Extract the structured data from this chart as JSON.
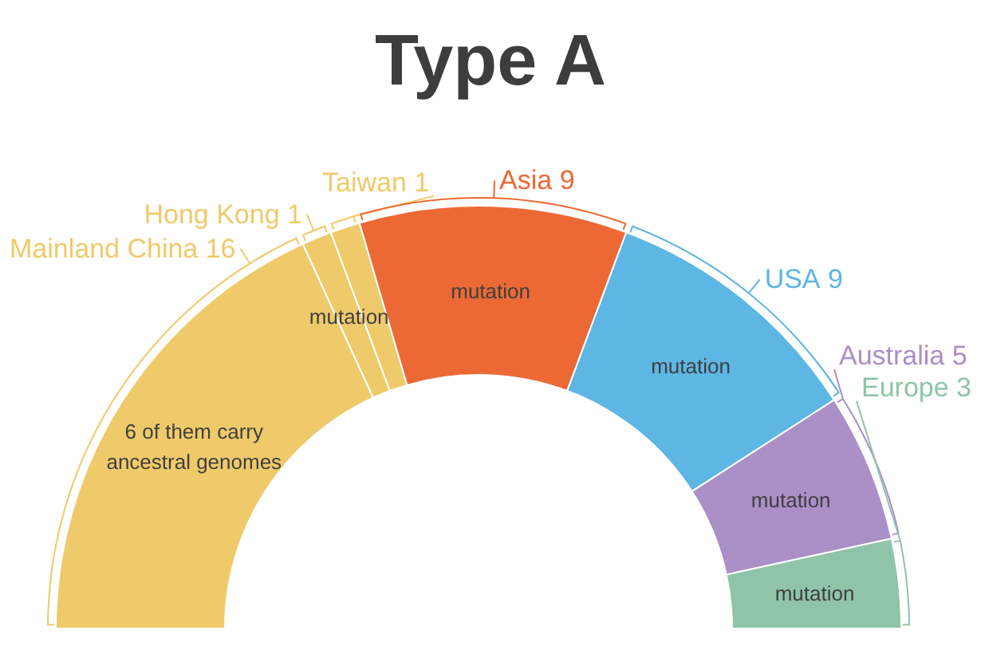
{
  "chart_data": {
    "type": "donut",
    "title": "Type A",
    "categories": [
      "Mainland China",
      "Hong Kong",
      "Taiwan",
      "Asia",
      "USA",
      "Australia",
      "Europe"
    ],
    "values": [
      16,
      1,
      1,
      9,
      9,
      5,
      3
    ],
    "colors": [
      "#efca6a",
      "#efca6a",
      "#efca6a",
      "#ec6936",
      "#5db6e4",
      "#ab8fc7",
      "#8fc4a8"
    ],
    "data_labels": true,
    "annotations": [
      {
        "text": "6 of them carry ancestral genomes",
        "x": "Mainland China"
      },
      {
        "text": "mutation",
        "x": "Hong Kong"
      },
      {
        "text": "mutation",
        "x": "Asia"
      },
      {
        "text": "mutation",
        "x": "USA"
      },
      {
        "text": "mutation",
        "x": "Australia"
      },
      {
        "text": "mutation",
        "x": "Europe"
      }
    ]
  }
}
